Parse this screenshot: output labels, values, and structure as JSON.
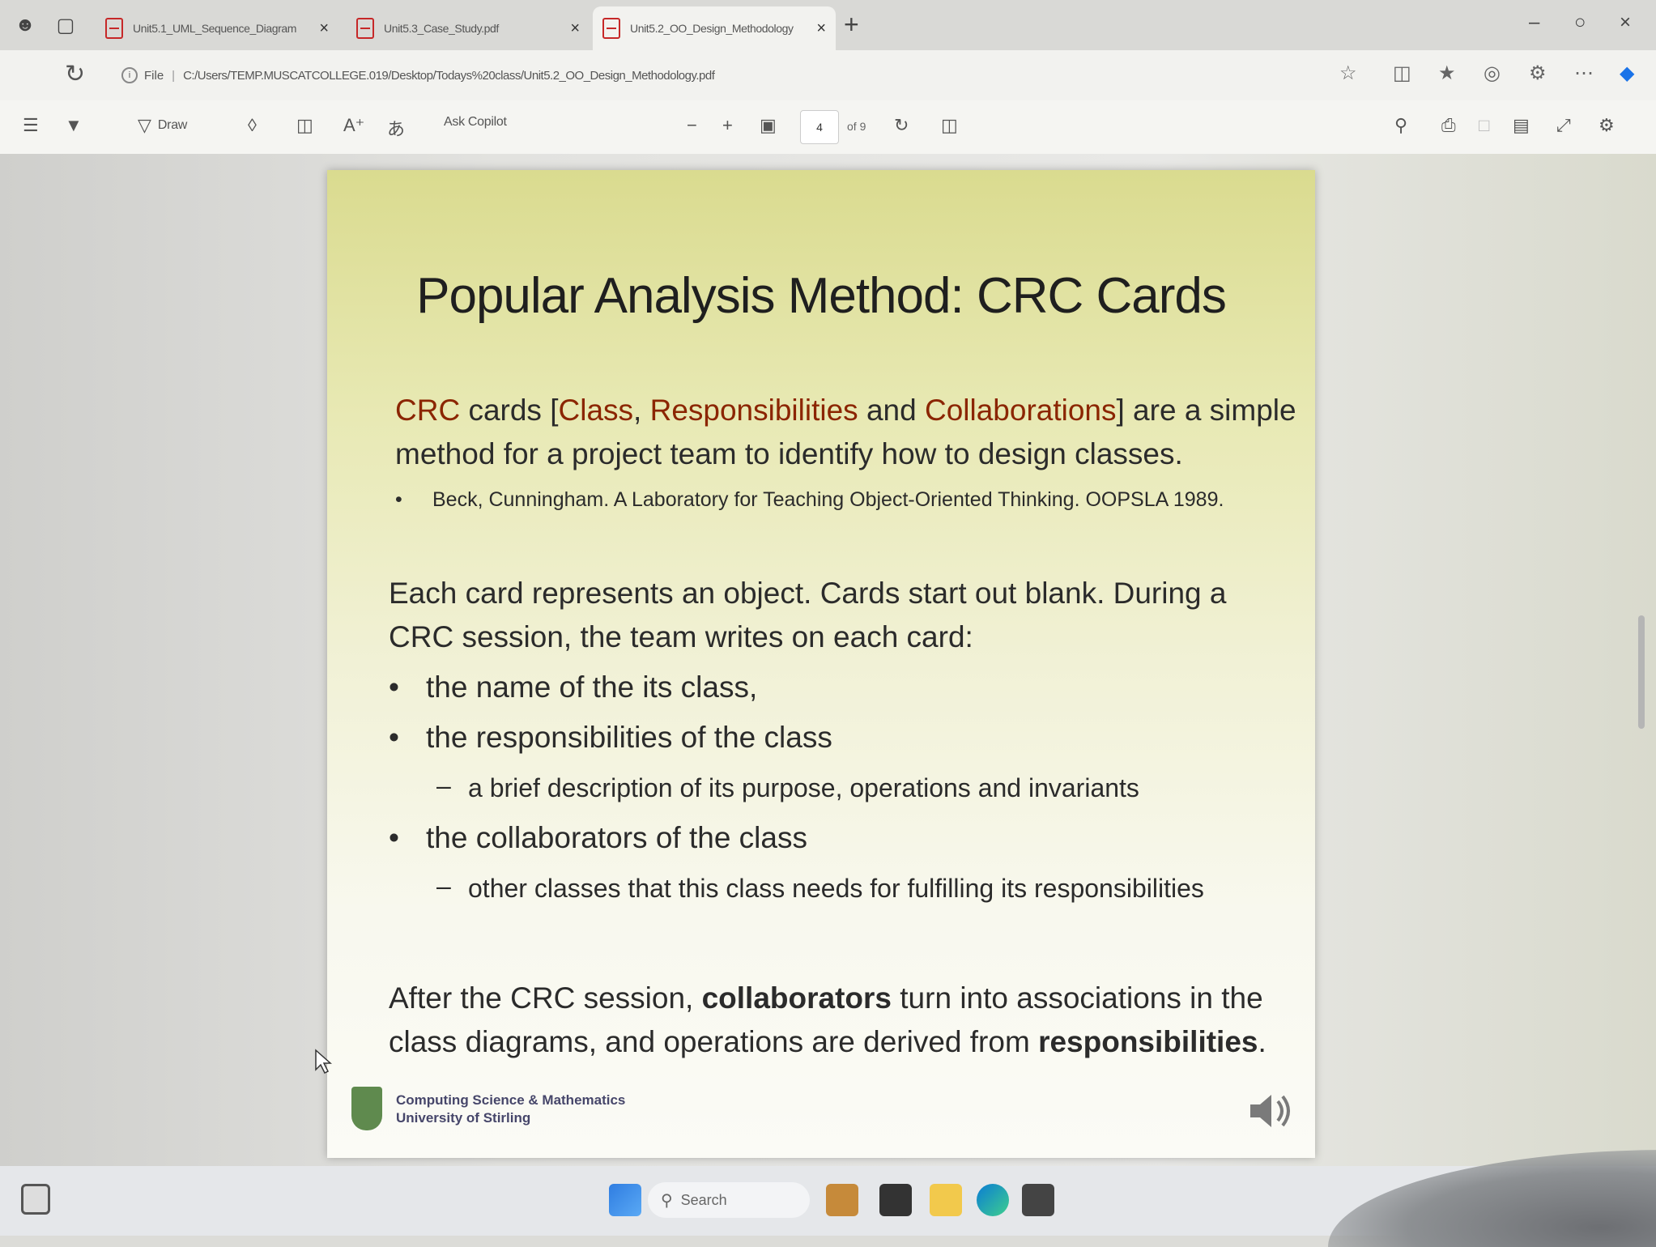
{
  "browser": {
    "tabs": [
      {
        "label": "Unit5.1_UML_Sequence_Diagram",
        "active": false
      },
      {
        "label": "Unit5.3_Case_Study.pdf",
        "active": false
      },
      {
        "label": "Unit5.2_OO_Design_Methodology",
        "active": true
      }
    ],
    "url_prefix": "File",
    "url": "C:/Users/TEMP.MUSCATCOLLEGE.019/Desktop/Todays%20class/Unit5.2_OO_Design_Methodology.pdf"
  },
  "pdf_toolbar": {
    "draw_label": "Draw",
    "copilot_label": "Ask Copilot",
    "current_page": "4",
    "page_total": "of 9"
  },
  "slide": {
    "title": "Popular Analysis Method: CRC Cards",
    "intro": {
      "crc": "CRC",
      "cards_open": " cards [",
      "class": "Class",
      "comma": ", ",
      "responsibilities": "Responsibilities",
      "and": " and ",
      "collaborations": "Collaborations",
      "rest_line1": "] are a simple",
      "line2": "method for a project team to identify how to design classes."
    },
    "reference": "Beck, Cunningham. A Laboratory for Teaching Object-Oriented Thinking. OOPSLA 1989.",
    "para2_line1": "Each card represents an object. Cards start out blank. During a",
    "para2_line2": "CRC session, the team writes on each card:",
    "bullets": [
      "the name of the its class,",
      "the responsibilities of the class",
      "the collaborators of the class"
    ],
    "subbullets": [
      "a brief description of its purpose, operations and invariants",
      "other classes that this class needs for fulfilling its responsibilities"
    ],
    "para3": {
      "line1_a": "After the CRC session, ",
      "line1_bold": "collaborators",
      "line1_b": " turn into associations in the",
      "line2_a": "class diagrams, and operations are derived from ",
      "line2_bold": "responsibilities",
      "line2_b": "."
    },
    "footer": {
      "line1": "Computing Science & Mathematics",
      "line2": "University of Stirling"
    }
  },
  "taskbar": {
    "search_placeholder": "Search"
  },
  "colors": {
    "accent_red": "#8b2500",
    "slide_top": "#dadb8f",
    "slide_bottom": "#fbfbf6"
  }
}
